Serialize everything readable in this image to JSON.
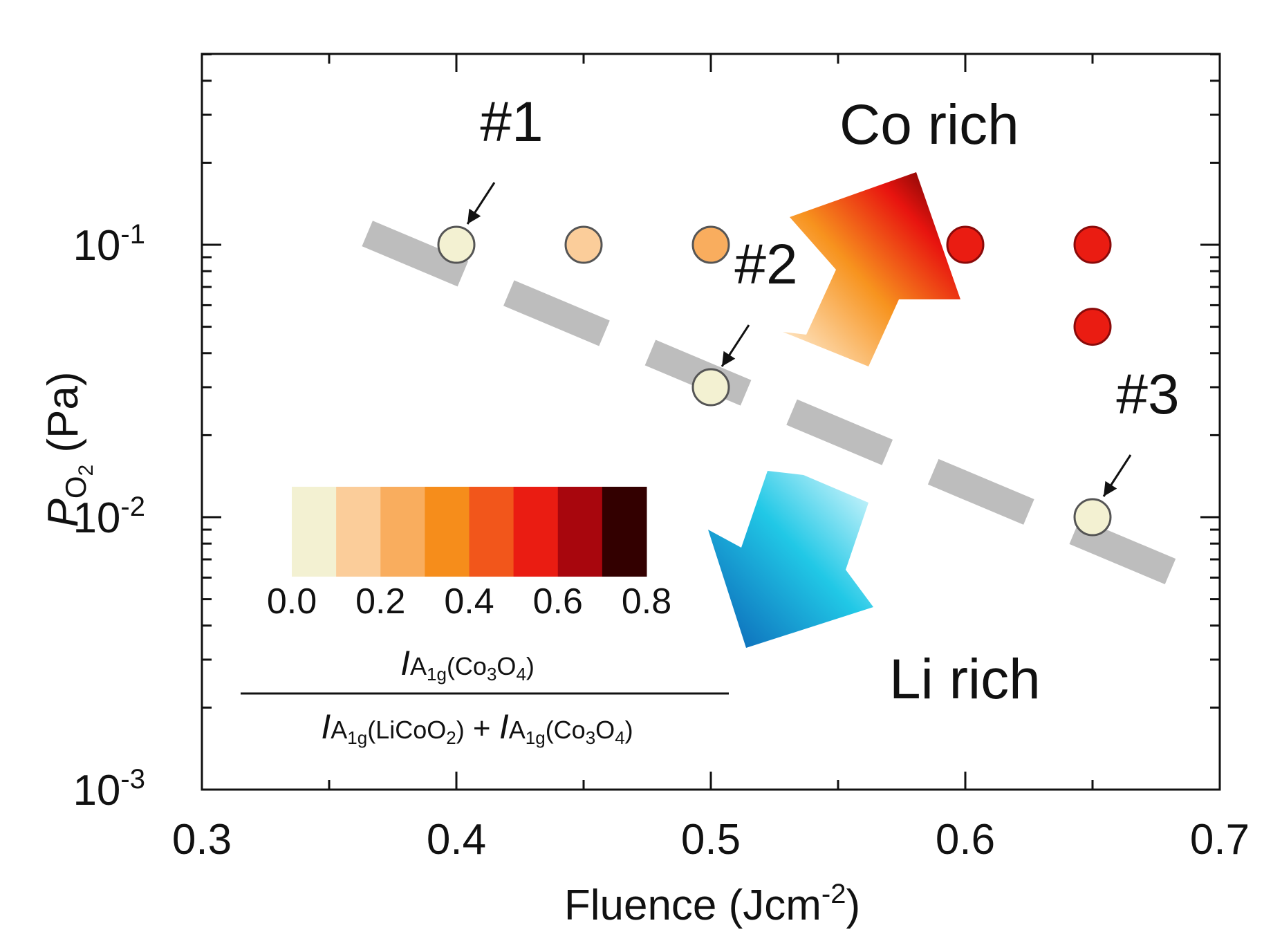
{
  "chart_data": {
    "type": "scatter",
    "title": "",
    "xlabel": {
      "main": "Fluence (Jcm",
      "exp": "-2",
      "close": ")"
    },
    "ylabel": {
      "p": "P",
      "sub": "O",
      "sub2": "2",
      "unit": " (Pa)"
    },
    "x_range": [
      0.3,
      0.7
    ],
    "y_range": [
      0.001,
      0.5
    ],
    "y_scale": "log",
    "x_ticks": [
      "0.3",
      "0.4",
      "0.5",
      "0.6",
      "0.7"
    ],
    "y_ticks": [
      {
        "base": "10",
        "exp": "-3",
        "value": 0.001
      },
      {
        "base": "10",
        "exp": "-2",
        "value": 0.01
      },
      {
        "base": "10",
        "exp": "-1",
        "value": 0.1
      }
    ],
    "points": [
      {
        "x": 0.4,
        "y": 0.1,
        "ratio": 0.0
      },
      {
        "x": 0.45,
        "y": 0.1,
        "ratio": 0.1
      },
      {
        "x": 0.5,
        "y": 0.1,
        "ratio": 0.3
      },
      {
        "x": 0.6,
        "y": 0.1,
        "ratio": 0.6
      },
      {
        "x": 0.65,
        "y": 0.1,
        "ratio": 0.6
      },
      {
        "x": 0.65,
        "y": 0.05,
        "ratio": 0.5
      },
      {
        "x": 0.5,
        "y": 0.03,
        "ratio": 0.0
      },
      {
        "x": 0.65,
        "y": 0.01,
        "ratio": 0.0
      }
    ],
    "boundary_line": {
      "from": {
        "x": 0.365,
        "y": 0.11
      },
      "to": {
        "x": 0.69,
        "y": 0.0058
      },
      "color": "#bdbdbd"
    },
    "point_labels": [
      {
        "text": "#1",
        "x": 0.4,
        "y": 0.1
      },
      {
        "text": "#2",
        "x": 0.5,
        "y": 0.03
      },
      {
        "text": "#3",
        "x": 0.65,
        "y": 0.01
      }
    ],
    "annotations": {
      "co_rich": "Co rich",
      "li_rich": "Li rich"
    },
    "colorbar": {
      "colors": [
        "#f3f1d2",
        "#fbcd9a",
        "#f9ad5e",
        "#f68d1b",
        "#f2561b",
        "#ea1c12",
        "#a8060d",
        "#330000"
      ],
      "ticks": [
        "0.0",
        "0.2",
        "0.4",
        "0.6",
        "0.8"
      ],
      "range": [
        0.0,
        0.8
      ],
      "formula": {
        "num_i": "I",
        "num_sub": "A",
        "num_sub2": "1g",
        "num_paren": "(Co",
        "num_s3": "3",
        "num_o": "O",
        "num_s4": "4",
        "num_close": ")",
        "den_i1": "I",
        "den_sub1": "A",
        "den_sub1b": "1g",
        "den_paren1": "(LiCoO",
        "den_s2": "2",
        "den_close1": ")",
        "den_plus": " + ",
        "den_i2": "I",
        "den_sub2": "A",
        "den_sub2b": "1g",
        "den_paren2": "(Co",
        "den_s3": "3",
        "den_o": "O",
        "den_s4": "4",
        "den_close2": ")"
      }
    },
    "colors": {
      "arrow_up_start": "#fff3e0",
      "arrow_up_mid": "#f7931e",
      "arrow_up_end": "#4a0000",
      "arrow_down_start": "#e8fbff",
      "arrow_down_mid": "#21c8e6",
      "arrow_down_end": "#0a5fb4"
    }
  }
}
